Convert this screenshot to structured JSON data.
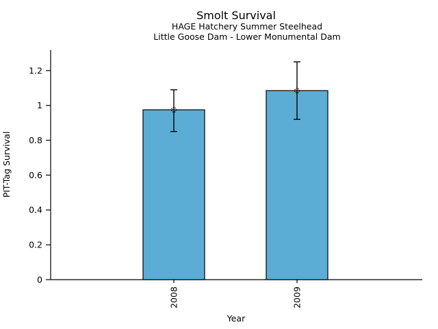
{
  "figure": {
    "title": "Smolt Survival",
    "subtitle_line1": "HAGE Hatchery Summer Steelhead",
    "subtitle_line2": "Little Goose Dam - Lower Monumental Dam"
  },
  "chart_data": {
    "type": "bar",
    "title": "Smolt Survival",
    "subtitle": [
      "HAGE Hatchery Summer Steelhead",
      "Little Goose Dam - Lower Monumental Dam"
    ],
    "xlabel": "Year",
    "ylabel": "PIT-Tag Survival",
    "categories": [
      "2008",
      "2009"
    ],
    "series": [
      {
        "name": "PIT-Tag Survival",
        "values": [
          0.975,
          1.085
        ],
        "error_low": [
          0.85,
          0.92
        ],
        "error_high": [
          1.09,
          1.25
        ]
      }
    ],
    "ytick_values": [
      0,
      0.2,
      0.4,
      0.6,
      0.8,
      1.0,
      1.2
    ],
    "ytick_labels": [
      "0",
      "0.2",
      "0.4",
      "0.6",
      "0.8",
      "1",
      "1.2"
    ],
    "ylim": [
      0,
      1.318
    ],
    "grid": false,
    "legend": "none",
    "marker": "dotted-open-circle",
    "colors": {
      "bar_fill": "#5badd6",
      "bar_edge": "#000000",
      "error_bar": "#000000",
      "axis": "#000000",
      "text": "#000000",
      "background": "#ffffff"
    }
  }
}
